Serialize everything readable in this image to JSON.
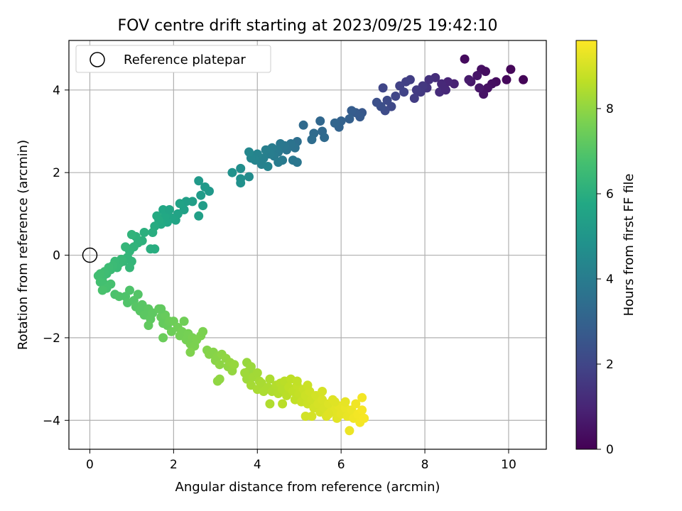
{
  "chart_data": {
    "type": "scatter",
    "title": "FOV centre drift starting at 2023/09/25 19:42:10",
    "xlabel": "Angular distance from reference (arcmin)",
    "ylabel": "Rotation from reference (arcmin)",
    "xlim": [
      -0.5,
      10.9
    ],
    "ylim": [
      -4.7,
      5.2
    ],
    "xticks": [
      0,
      2,
      4,
      6,
      8,
      10
    ],
    "yticks": [
      -4,
      -2,
      0,
      2,
      4
    ],
    "grid": true,
    "legend": {
      "placement": "top-left",
      "entries": [
        {
          "label": "Reference platepar",
          "marker": "open-circle"
        }
      ]
    },
    "reference_point": {
      "x": 0,
      "y": 0
    },
    "colorbar": {
      "label": "Hours from first FF file",
      "range": [
        0,
        9.6
      ],
      "ticks": [
        0,
        2,
        4,
        6,
        8
      ],
      "colormap": "viridis"
    },
    "points": [
      {
        "x": 10.35,
        "y": 4.25,
        "t": 0.1
      },
      {
        "x": 10.05,
        "y": 4.5,
        "t": 0.15
      },
      {
        "x": 9.95,
        "y": 4.25,
        "t": 0.2
      },
      {
        "x": 9.7,
        "y": 4.2,
        "t": 0.3
      },
      {
        "x": 9.6,
        "y": 4.15,
        "t": 0.35
      },
      {
        "x": 9.5,
        "y": 4.05,
        "t": 0.45
      },
      {
        "x": 9.4,
        "y": 3.9,
        "t": 0.5
      },
      {
        "x": 9.35,
        "y": 4.5,
        "t": 0.4
      },
      {
        "x": 9.25,
        "y": 4.35,
        "t": 0.55
      },
      {
        "x": 9.1,
        "y": 4.2,
        "t": 0.6
      },
      {
        "x": 9.05,
        "y": 4.25,
        "t": 0.7
      },
      {
        "x": 8.95,
        "y": 4.75,
        "t": 0.25
      },
      {
        "x": 9.3,
        "y": 4.05,
        "t": 0.6
      },
      {
        "x": 9.45,
        "y": 4.45,
        "t": 0.35
      },
      {
        "x": 8.7,
        "y": 4.15,
        "t": 0.9
      },
      {
        "x": 8.55,
        "y": 4.2,
        "t": 1.0
      },
      {
        "x": 8.4,
        "y": 4.15,
        "t": 1.1
      },
      {
        "x": 8.35,
        "y": 3.95,
        "t": 1.2
      },
      {
        "x": 8.5,
        "y": 4.0,
        "t": 1.1
      },
      {
        "x": 8.25,
        "y": 4.3,
        "t": 1.25
      },
      {
        "x": 8.1,
        "y": 4.25,
        "t": 1.35
      },
      {
        "x": 8.05,
        "y": 4.05,
        "t": 1.45
      },
      {
        "x": 7.95,
        "y": 4.1,
        "t": 1.55
      },
      {
        "x": 7.9,
        "y": 3.95,
        "t": 1.6
      },
      {
        "x": 7.75,
        "y": 3.8,
        "t": 1.7
      },
      {
        "x": 7.8,
        "y": 4.0,
        "t": 1.65
      },
      {
        "x": 7.65,
        "y": 4.25,
        "t": 1.75
      },
      {
        "x": 7.55,
        "y": 4.2,
        "t": 1.8
      },
      {
        "x": 7.4,
        "y": 4.1,
        "t": 1.85
      },
      {
        "x": 7.5,
        "y": 3.95,
        "t": 1.9
      },
      {
        "x": 7.3,
        "y": 3.85,
        "t": 2.0
      },
      {
        "x": 7.2,
        "y": 3.6,
        "t": 2.1
      },
      {
        "x": 7.1,
        "y": 3.75,
        "t": 2.15
      },
      {
        "x": 7.05,
        "y": 3.5,
        "t": 2.2
      },
      {
        "x": 6.95,
        "y": 3.6,
        "t": 2.3
      },
      {
        "x": 6.85,
        "y": 3.7,
        "t": 2.35
      },
      {
        "x": 7.0,
        "y": 4.05,
        "t": 2.0
      },
      {
        "x": 6.5,
        "y": 3.45,
        "t": 2.6
      },
      {
        "x": 6.45,
        "y": 3.35,
        "t": 2.7
      },
      {
        "x": 6.35,
        "y": 3.45,
        "t": 2.75
      },
      {
        "x": 6.25,
        "y": 3.5,
        "t": 2.8
      },
      {
        "x": 6.2,
        "y": 3.3,
        "t": 2.9
      },
      {
        "x": 6.0,
        "y": 3.25,
        "t": 3.0
      },
      {
        "x": 5.95,
        "y": 3.1,
        "t": 3.05
      },
      {
        "x": 5.85,
        "y": 3.2,
        "t": 3.1
      },
      {
        "x": 5.5,
        "y": 3.25,
        "t": 3.2
      },
      {
        "x": 5.55,
        "y": 3.0,
        "t": 3.25
      },
      {
        "x": 5.6,
        "y": 2.85,
        "t": 3.3
      },
      {
        "x": 5.35,
        "y": 2.95,
        "t": 3.35
      },
      {
        "x": 5.3,
        "y": 2.8,
        "t": 3.4
      },
      {
        "x": 5.1,
        "y": 3.15,
        "t": 3.3
      },
      {
        "x": 4.95,
        "y": 2.75,
        "t": 3.5
      },
      {
        "x": 4.9,
        "y": 2.6,
        "t": 3.6
      },
      {
        "x": 4.8,
        "y": 2.7,
        "t": 3.65
      },
      {
        "x": 4.7,
        "y": 2.55,
        "t": 3.7
      },
      {
        "x": 4.65,
        "y": 2.65,
        "t": 3.75
      },
      {
        "x": 4.55,
        "y": 2.7,
        "t": 3.8
      },
      {
        "x": 4.5,
        "y": 2.5,
        "t": 3.85
      },
      {
        "x": 4.45,
        "y": 2.55,
        "t": 3.9
      },
      {
        "x": 4.4,
        "y": 2.4,
        "t": 3.95
      },
      {
        "x": 4.35,
        "y": 2.6,
        "t": 4.0
      },
      {
        "x": 4.3,
        "y": 2.45,
        "t": 4.05
      },
      {
        "x": 4.2,
        "y": 2.55,
        "t": 4.1
      },
      {
        "x": 4.15,
        "y": 2.35,
        "t": 4.15
      },
      {
        "x": 4.1,
        "y": 2.2,
        "t": 4.2
      },
      {
        "x": 4.0,
        "y": 2.45,
        "t": 4.25
      },
      {
        "x": 3.95,
        "y": 2.3,
        "t": 4.3
      },
      {
        "x": 3.85,
        "y": 2.35,
        "t": 4.35
      },
      {
        "x": 3.8,
        "y": 2.5,
        "t": 4.4
      },
      {
        "x": 4.85,
        "y": 2.3,
        "t": 3.8
      },
      {
        "x": 4.95,
        "y": 2.25,
        "t": 3.75
      },
      {
        "x": 4.6,
        "y": 2.3,
        "t": 3.9
      },
      {
        "x": 4.5,
        "y": 2.25,
        "t": 4.0
      },
      {
        "x": 4.25,
        "y": 2.15,
        "t": 4.25
      },
      {
        "x": 3.8,
        "y": 1.9,
        "t": 4.6
      },
      {
        "x": 3.6,
        "y": 2.1,
        "t": 4.7
      },
      {
        "x": 3.6,
        "y": 1.85,
        "t": 4.75
      },
      {
        "x": 3.6,
        "y": 1.75,
        "t": 4.8
      },
      {
        "x": 3.4,
        "y": 2.0,
        "t": 4.85
      },
      {
        "x": 2.85,
        "y": 1.55,
        "t": 5.1
      },
      {
        "x": 2.75,
        "y": 1.65,
        "t": 5.15
      },
      {
        "x": 2.65,
        "y": 1.45,
        "t": 5.2
      },
      {
        "x": 2.6,
        "y": 1.8,
        "t": 5.15
      },
      {
        "x": 2.7,
        "y": 1.2,
        "t": 5.3
      },
      {
        "x": 2.6,
        "y": 0.95,
        "t": 5.4
      },
      {
        "x": 2.45,
        "y": 1.3,
        "t": 5.35
      },
      {
        "x": 2.3,
        "y": 1.3,
        "t": 5.4
      },
      {
        "x": 2.25,
        "y": 1.1,
        "t": 5.45
      },
      {
        "x": 2.15,
        "y": 1.25,
        "t": 5.5
      },
      {
        "x": 2.1,
        "y": 1.0,
        "t": 5.55
      },
      {
        "x": 2.05,
        "y": 0.85,
        "t": 5.6
      },
      {
        "x": 1.95,
        "y": 0.9,
        "t": 5.65
      },
      {
        "x": 1.85,
        "y": 0.8,
        "t": 5.7
      },
      {
        "x": 1.8,
        "y": 0.95,
        "t": 5.75
      },
      {
        "x": 1.7,
        "y": 0.75,
        "t": 5.8
      },
      {
        "x": 1.65,
        "y": 0.85,
        "t": 5.85
      },
      {
        "x": 1.55,
        "y": 0.7,
        "t": 5.9
      },
      {
        "x": 1.6,
        "y": 0.95,
        "t": 5.85
      },
      {
        "x": 1.75,
        "y": 1.1,
        "t": 5.7
      },
      {
        "x": 1.9,
        "y": 1.1,
        "t": 5.65
      },
      {
        "x": 1.5,
        "y": 0.55,
        "t": 5.95
      },
      {
        "x": 1.45,
        "y": 0.15,
        "t": 6.0
      },
      {
        "x": 1.55,
        "y": 0.15,
        "t": 5.95
      },
      {
        "x": 1.3,
        "y": 0.55,
        "t": 6.05
      },
      {
        "x": 1.25,
        "y": 0.35,
        "t": 6.1
      },
      {
        "x": 1.15,
        "y": 0.3,
        "t": 6.15
      },
      {
        "x": 1.1,
        "y": 0.45,
        "t": 6.15
      },
      {
        "x": 1.05,
        "y": 0.2,
        "t": 6.2
      },
      {
        "x": 1.0,
        "y": 0.5,
        "t": 6.2
      },
      {
        "x": 0.95,
        "y": 0.1,
        "t": 6.25
      },
      {
        "x": 0.9,
        "y": -0.05,
        "t": 6.3
      },
      {
        "x": 0.85,
        "y": 0.2,
        "t": 6.3
      },
      {
        "x": 0.8,
        "y": -0.15,
        "t": 6.35
      },
      {
        "x": 0.75,
        "y": -0.1,
        "t": 6.4
      },
      {
        "x": 0.7,
        "y": -0.2,
        "t": 6.4
      },
      {
        "x": 0.65,
        "y": -0.3,
        "t": 6.45
      },
      {
        "x": 0.6,
        "y": -0.15,
        "t": 6.45
      },
      {
        "x": 0.55,
        "y": -0.25,
        "t": 6.5
      },
      {
        "x": 0.5,
        "y": -0.35,
        "t": 6.5
      },
      {
        "x": 0.45,
        "y": -0.3,
        "t": 6.55
      },
      {
        "x": 0.4,
        "y": -0.45,
        "t": 6.55
      },
      {
        "x": 0.35,
        "y": -0.4,
        "t": 6.6
      },
      {
        "x": 0.3,
        "y": -0.55,
        "t": 6.6
      },
      {
        "x": 0.25,
        "y": -0.45,
        "t": 6.65
      },
      {
        "x": 0.2,
        "y": -0.5,
        "t": 6.65
      },
      {
        "x": 0.25,
        "y": -0.65,
        "t": 6.7
      },
      {
        "x": 0.35,
        "y": -0.7,
        "t": 6.7
      },
      {
        "x": 0.4,
        "y": -0.8,
        "t": 6.75
      },
      {
        "x": 0.5,
        "y": -0.7,
        "t": 6.75
      },
      {
        "x": 0.3,
        "y": -0.85,
        "t": 6.8
      },
      {
        "x": 1.0,
        "y": -0.15,
        "t": 6.3
      },
      {
        "x": 0.95,
        "y": -0.3,
        "t": 6.35
      },
      {
        "x": 0.6,
        "y": -0.95,
        "t": 6.85
      },
      {
        "x": 0.7,
        "y": -1.0,
        "t": 6.9
      },
      {
        "x": 0.85,
        "y": -1.0,
        "t": 6.9
      },
      {
        "x": 0.9,
        "y": -1.15,
        "t": 6.95
      },
      {
        "x": 0.95,
        "y": -0.85,
        "t": 6.9
      },
      {
        "x": 1.05,
        "y": -1.1,
        "t": 7.0
      },
      {
        "x": 1.15,
        "y": -0.95,
        "t": 7.0
      },
      {
        "x": 1.1,
        "y": -1.25,
        "t": 7.05
      },
      {
        "x": 1.2,
        "y": -1.35,
        "t": 7.1
      },
      {
        "x": 1.25,
        "y": -1.2,
        "t": 7.1
      },
      {
        "x": 1.3,
        "y": -1.45,
        "t": 7.15
      },
      {
        "x": 1.4,
        "y": -1.3,
        "t": 7.15
      },
      {
        "x": 1.45,
        "y": -1.55,
        "t": 7.2
      },
      {
        "x": 1.5,
        "y": -1.4,
        "t": 7.2
      },
      {
        "x": 1.4,
        "y": -1.7,
        "t": 7.25
      },
      {
        "x": 1.65,
        "y": -1.3,
        "t": 7.25
      },
      {
        "x": 1.7,
        "y": -1.5,
        "t": 7.3
      },
      {
        "x": 1.75,
        "y": -1.65,
        "t": 7.3
      },
      {
        "x": 1.8,
        "y": -1.45,
        "t": 7.35
      },
      {
        "x": 1.85,
        "y": -1.7,
        "t": 7.35
      },
      {
        "x": 1.9,
        "y": -1.6,
        "t": 7.4
      },
      {
        "x": 1.95,
        "y": -1.85,
        "t": 7.45
      },
      {
        "x": 2.0,
        "y": -1.6,
        "t": 7.45
      },
      {
        "x": 2.1,
        "y": -1.75,
        "t": 7.5
      },
      {
        "x": 2.15,
        "y": -1.95,
        "t": 7.55
      },
      {
        "x": 2.2,
        "y": -1.85,
        "t": 7.55
      },
      {
        "x": 2.25,
        "y": -1.6,
        "t": 7.5
      },
      {
        "x": 2.3,
        "y": -2.05,
        "t": 7.6
      },
      {
        "x": 2.35,
        "y": -1.9,
        "t": 7.6
      },
      {
        "x": 2.4,
        "y": -2.15,
        "t": 7.65
      },
      {
        "x": 2.45,
        "y": -2.0,
        "t": 7.65
      },
      {
        "x": 2.5,
        "y": -2.2,
        "t": 7.7
      },
      {
        "x": 2.55,
        "y": -2.05,
        "t": 7.7
      },
      {
        "x": 2.65,
        "y": -1.95,
        "t": 7.7
      },
      {
        "x": 2.7,
        "y": -1.85,
        "t": 7.7
      },
      {
        "x": 2.4,
        "y": -2.35,
        "t": 7.75
      },
      {
        "x": 1.75,
        "y": -2.0,
        "t": 7.4
      },
      {
        "x": 1.7,
        "y": -1.3,
        "t": 7.25
      },
      {
        "x": 2.8,
        "y": -2.3,
        "t": 7.8
      },
      {
        "x": 2.85,
        "y": -2.4,
        "t": 7.85
      },
      {
        "x": 2.95,
        "y": -2.35,
        "t": 7.85
      },
      {
        "x": 3.0,
        "y": -2.55,
        "t": 7.9
      },
      {
        "x": 3.05,
        "y": -2.45,
        "t": 7.9
      },
      {
        "x": 3.1,
        "y": -2.65,
        "t": 7.95
      },
      {
        "x": 3.15,
        "y": -2.4,
        "t": 7.95
      },
      {
        "x": 3.25,
        "y": -2.5,
        "t": 8.0
      },
      {
        "x": 3.3,
        "y": -2.7,
        "t": 8.0
      },
      {
        "x": 3.35,
        "y": -2.6,
        "t": 8.05
      },
      {
        "x": 3.4,
        "y": -2.8,
        "t": 8.05
      },
      {
        "x": 3.45,
        "y": -2.65,
        "t": 8.1
      },
      {
        "x": 3.1,
        "y": -3.0,
        "t": 8.0
      },
      {
        "x": 3.05,
        "y": -3.05,
        "t": 8.0
      },
      {
        "x": 3.75,
        "y": -2.6,
        "t": 8.1
      },
      {
        "x": 3.8,
        "y": -2.8,
        "t": 8.15
      },
      {
        "x": 3.85,
        "y": -2.7,
        "t": 8.15
      },
      {
        "x": 3.7,
        "y": -2.85,
        "t": 8.2
      },
      {
        "x": 3.75,
        "y": -3.0,
        "t": 8.2
      },
      {
        "x": 3.9,
        "y": -2.95,
        "t": 8.25
      },
      {
        "x": 4.0,
        "y": -2.85,
        "t": 8.25
      },
      {
        "x": 4.05,
        "y": -3.05,
        "t": 8.3
      },
      {
        "x": 3.85,
        "y": -3.15,
        "t": 8.3
      },
      {
        "x": 4.0,
        "y": -3.25,
        "t": 8.35
      },
      {
        "x": 4.1,
        "y": -3.1,
        "t": 8.35
      },
      {
        "x": 4.15,
        "y": -3.3,
        "t": 8.4
      },
      {
        "x": 4.25,
        "y": -3.2,
        "t": 8.4
      },
      {
        "x": 4.3,
        "y": -3.0,
        "t": 8.4
      },
      {
        "x": 4.35,
        "y": -3.3,
        "t": 8.45
      },
      {
        "x": 4.45,
        "y": -3.15,
        "t": 8.5
      },
      {
        "x": 4.5,
        "y": -3.35,
        "t": 8.5
      },
      {
        "x": 4.55,
        "y": -3.1,
        "t": 8.55
      },
      {
        "x": 4.6,
        "y": -3.25,
        "t": 8.55
      },
      {
        "x": 4.65,
        "y": -3.05,
        "t": 8.6
      },
      {
        "x": 4.7,
        "y": -3.4,
        "t": 8.6
      },
      {
        "x": 4.75,
        "y": -3.2,
        "t": 8.65
      },
      {
        "x": 4.8,
        "y": -3.0,
        "t": 8.65
      },
      {
        "x": 4.85,
        "y": -3.3,
        "t": 8.7
      },
      {
        "x": 4.9,
        "y": -3.5,
        "t": 8.7
      },
      {
        "x": 4.95,
        "y": -3.15,
        "t": 8.75
      },
      {
        "x": 5.0,
        "y": -3.35,
        "t": 8.75
      },
      {
        "x": 5.05,
        "y": -3.55,
        "t": 8.8
      },
      {
        "x": 5.1,
        "y": -3.25,
        "t": 8.8
      },
      {
        "x": 5.15,
        "y": -3.4,
        "t": 8.85
      },
      {
        "x": 5.2,
        "y": -3.6,
        "t": 8.85
      },
      {
        "x": 5.25,
        "y": -3.3,
        "t": 8.9
      },
      {
        "x": 5.3,
        "y": -3.5,
        "t": 8.9
      },
      {
        "x": 5.35,
        "y": -3.7,
        "t": 8.95
      },
      {
        "x": 5.4,
        "y": -3.4,
        "t": 8.95
      },
      {
        "x": 5.45,
        "y": -3.6,
        "t": 9.0
      },
      {
        "x": 5.5,
        "y": -3.8,
        "t": 9.0
      },
      {
        "x": 5.55,
        "y": -3.5,
        "t": 9.05
      },
      {
        "x": 5.6,
        "y": -3.7,
        "t": 9.05
      },
      {
        "x": 5.65,
        "y": -3.9,
        "t": 9.1
      },
      {
        "x": 5.7,
        "y": -3.6,
        "t": 9.1
      },
      {
        "x": 5.75,
        "y": -3.8,
        "t": 9.15
      },
      {
        "x": 5.8,
        "y": -3.5,
        "t": 9.15
      },
      {
        "x": 5.85,
        "y": -3.75,
        "t": 9.2
      },
      {
        "x": 5.9,
        "y": -3.95,
        "t": 9.2
      },
      {
        "x": 5.95,
        "y": -3.65,
        "t": 9.25
      },
      {
        "x": 6.0,
        "y": -3.85,
        "t": 9.25
      },
      {
        "x": 6.1,
        "y": -3.7,
        "t": 9.3
      },
      {
        "x": 6.15,
        "y": -3.9,
        "t": 9.3
      },
      {
        "x": 6.2,
        "y": -4.25,
        "t": 9.35
      },
      {
        "x": 6.25,
        "y": -3.75,
        "t": 9.35
      },
      {
        "x": 6.3,
        "y": -3.95,
        "t": 9.4
      },
      {
        "x": 6.35,
        "y": -3.6,
        "t": 9.4
      },
      {
        "x": 6.4,
        "y": -3.85,
        "t": 9.45
      },
      {
        "x": 6.45,
        "y": -4.05,
        "t": 9.45
      },
      {
        "x": 6.5,
        "y": -3.75,
        "t": 9.5
      },
      {
        "x": 6.55,
        "y": -3.95,
        "t": 9.5
      },
      {
        "x": 6.5,
        "y": -3.45,
        "t": 9.45
      },
      {
        "x": 6.1,
        "y": -3.55,
        "t": 9.25
      },
      {
        "x": 5.7,
        "y": -3.85,
        "t": 9.15
      },
      {
        "x": 5.3,
        "y": -3.9,
        "t": 9.0
      },
      {
        "x": 5.15,
        "y": -3.9,
        "t": 8.95
      },
      {
        "x": 4.6,
        "y": -3.6,
        "t": 8.6
      },
      {
        "x": 4.3,
        "y": -3.6,
        "t": 8.45
      },
      {
        "x": 4.95,
        "y": -3.05,
        "t": 8.7
      },
      {
        "x": 5.2,
        "y": -3.15,
        "t": 8.85
      },
      {
        "x": 5.55,
        "y": -3.3,
        "t": 9.0
      },
      {
        "x": 5.85,
        "y": -3.55,
        "t": 9.15
      }
    ]
  }
}
